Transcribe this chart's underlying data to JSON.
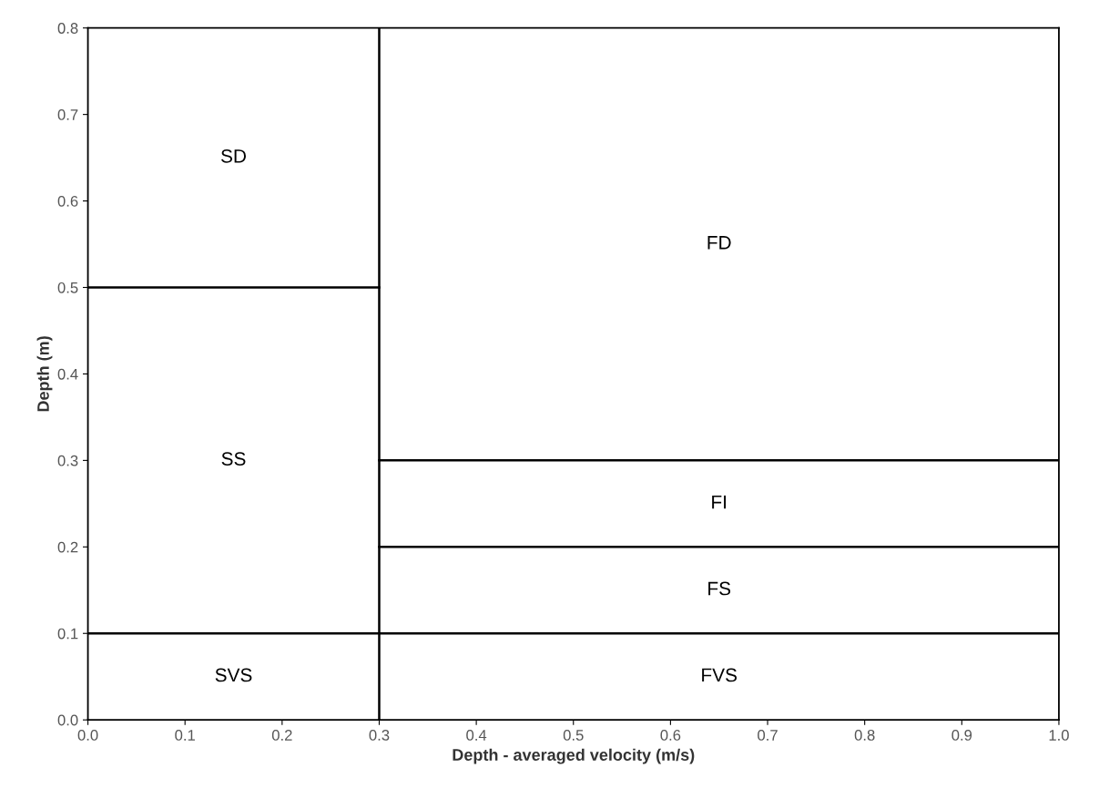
{
  "chart_data": {
    "type": "line",
    "xlabel": "Depth - averaged velocity (m/s)",
    "ylabel": "Depth (m)",
    "xlim": [
      0,
      1
    ],
    "ylim": [
      0,
      0.8
    ],
    "xticks": [
      {
        "value": 0,
        "label": "0.0"
      },
      0.1,
      0.2,
      0.3,
      0.4,
      0.5,
      0.6,
      0.7,
      0.8,
      0.9,
      {
        "value": 1,
        "label": "1.0"
      }
    ],
    "yticks": [
      {
        "value": 0,
        "label": "0.0"
      },
      0.1,
      0.2,
      0.3,
      0.4,
      0.5,
      0.6,
      0.7,
      0.8
    ],
    "grid": false,
    "legend": false,
    "marker": "none",
    "line_style": "solid",
    "series": [
      {
        "color": "#000000",
        "x": [
          0.3,
          0.3
        ],
        "values": [
          0,
          0.8
        ]
      },
      {
        "color": "#000000",
        "x": [
          0,
          0.3
        ],
        "values": [
          0.5,
          0.5
        ]
      },
      {
        "color": "#000000",
        "x": [
          0,
          1
        ],
        "values": [
          0.1,
          0.1
        ]
      },
      {
        "color": "#000000",
        "x": [
          0.3,
          1
        ],
        "values": [
          0.3,
          0.3
        ]
      },
      {
        "color": "#000000",
        "x": [
          0.3,
          1
        ],
        "values": [
          0.2,
          0.2
        ]
      }
    ],
    "annotations": [
      "SD",
      "SS",
      "SVS",
      "FD",
      "FI",
      "FS",
      "FVS"
    ]
  }
}
